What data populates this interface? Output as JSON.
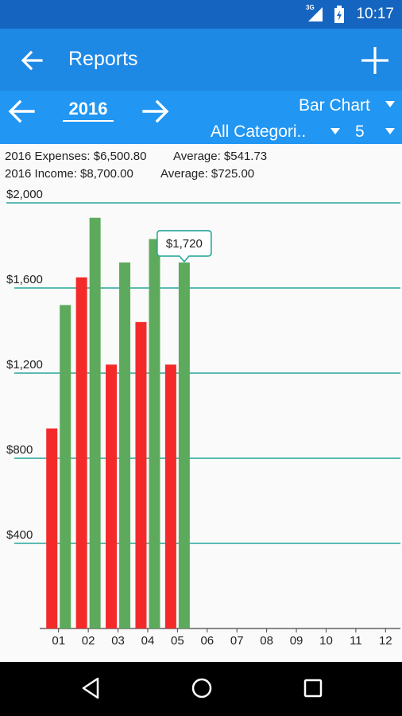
{
  "status_bar": {
    "time": "10:17",
    "network": "3G"
  },
  "app_bar": {
    "title": "Reports"
  },
  "toolbar": {
    "year": "2016",
    "chart_type": "Bar Chart",
    "category": "All Categori..",
    "month_count": "5"
  },
  "summary": {
    "expenses": "2016 Expenses: $6,500.80",
    "expenses_average": "Average: $541.73",
    "income": "2016 Income: $8,700.00",
    "income_average": "Average: $725.00"
  },
  "tooltip": {
    "text": "$1,720",
    "category": "05"
  },
  "colors": {
    "expenses": "#F42A2A",
    "income": "#5DAA5D",
    "gridline": "#26A69A",
    "primary": "#1E88E5",
    "status": "#1565C0",
    "toolbar": "#2196F3"
  },
  "chart_data": {
    "type": "bar",
    "categories": [
      "01",
      "02",
      "03",
      "04",
      "05",
      "06",
      "07",
      "08",
      "09",
      "10",
      "11",
      "12"
    ],
    "series": [
      {
        "values": [
          940,
          1650,
          1240,
          1440,
          1240,
          null,
          null,
          null,
          null,
          null,
          null,
          null
        ],
        "color": "#F42A2A"
      },
      {
        "values": [
          1520,
          1930,
          1720,
          1830,
          1720,
          null,
          null,
          null,
          null,
          null,
          null,
          null
        ],
        "color": "#5DAA5D"
      }
    ],
    "y_ticks": [
      "$2,000",
      "$1,600",
      "$1,200",
      "$800",
      "$400"
    ],
    "y_tick_values": [
      2000,
      1600,
      1200,
      800,
      400
    ],
    "ylim": [
      0,
      2000
    ],
    "title": "",
    "xlabel": "",
    "ylabel": "",
    "grid": true
  }
}
